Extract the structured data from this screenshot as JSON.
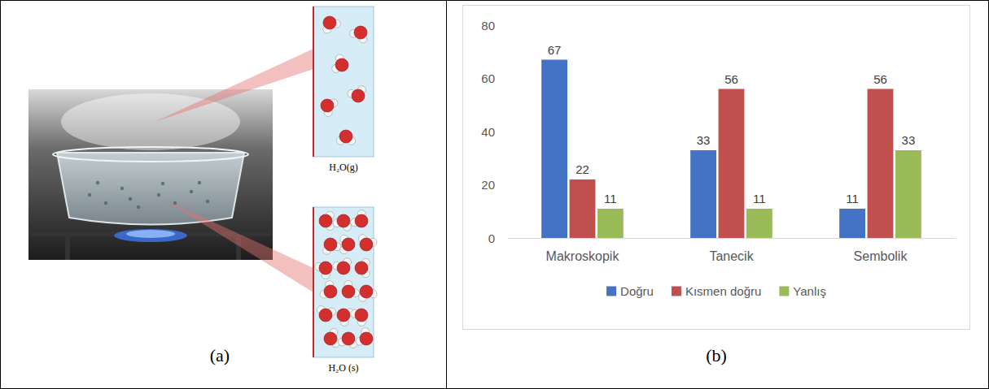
{
  "panels": {
    "a": {
      "label": "(a)",
      "molecule_labels": [
        "H₂O(g)",
        "H₂O (s)"
      ]
    },
    "b": {
      "label": "(b)"
    }
  },
  "chart_data": {
    "type": "bar",
    "categories": [
      "Makroskopik",
      "Tanecik",
      "Sembolik"
    ],
    "series": [
      {
        "name": "Doğru",
        "color": "#4472c4",
        "values": [
          67,
          33,
          11
        ]
      },
      {
        "name": "Kısmen doğru",
        "color": "#c0504d",
        "values": [
          22,
          56,
          56
        ]
      },
      {
        "name": "Yanlış",
        "color": "#9bbb59",
        "values": [
          11,
          11,
          33
        ]
      }
    ],
    "ylim": [
      0,
      80
    ],
    "yticks": [
      0,
      20,
      40,
      60,
      80
    ],
    "grid": false,
    "legend": "bottom",
    "data_labels": true
  }
}
